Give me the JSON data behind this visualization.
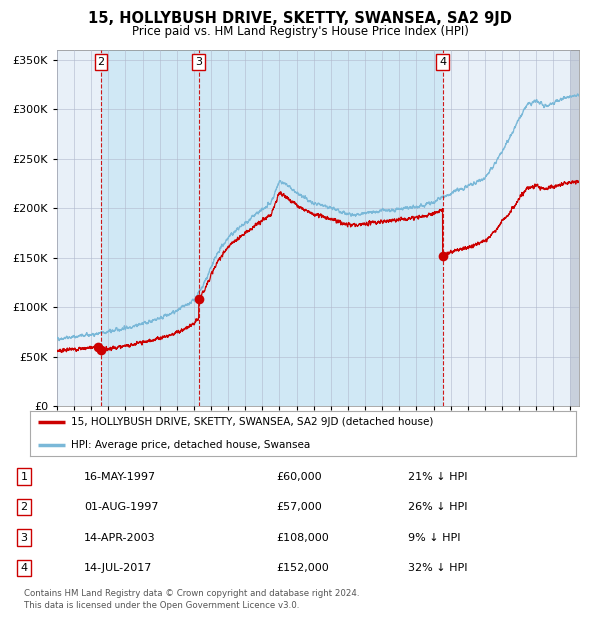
{
  "title": "15, HOLLYBUSH DRIVE, SKETTY, SWANSEA, SA2 9JD",
  "subtitle": "Price paid vs. HM Land Registry's House Price Index (HPI)",
  "legend_line1": "15, HOLLYBUSH DRIVE, SKETTY, SWANSEA, SA2 9JD (detached house)",
  "legend_line2": "HPI: Average price, detached house, Swansea",
  "footer1": "Contains HM Land Registry data © Crown copyright and database right 2024.",
  "footer2": "This data is licensed under the Open Government Licence v3.0.",
  "transactions": [
    {
      "label": "1",
      "date": "16-MAY-1997",
      "price": 60000,
      "pct": "21% ↓ HPI",
      "year": 1997.37
    },
    {
      "label": "2",
      "date": "01-AUG-1997",
      "price": 57000,
      "pct": "26% ↓ HPI",
      "year": 1997.58
    },
    {
      "label": "3",
      "date": "14-APR-2003",
      "price": 108000,
      "pct": "9% ↓ HPI",
      "year": 2003.28
    },
    {
      "label": "4",
      "date": "14-JUL-2017",
      "price": 152000,
      "pct": "32% ↓ HPI",
      "year": 2017.53
    }
  ],
  "hpi_color": "#7ab8d8",
  "price_color": "#cc0000",
  "dot_color": "#cc0000",
  "vline_color": "#cc0000",
  "shade_color": "#d0e8f5",
  "plot_bg": "#e8f0f8",
  "grid_color": "#b0b8cc",
  "hatch_color": "#c8d0dc",
  "ylim": [
    0,
    360000
  ],
  "xlim_start": 1995.0,
  "xlim_end": 2025.5,
  "hpi_anchors_x": [
    1995.0,
    1995.5,
    1996.0,
    1996.5,
    1997.0,
    1997.5,
    1998.0,
    1998.5,
    1999.0,
    1999.5,
    2000.0,
    2000.5,
    2001.0,
    2001.5,
    2002.0,
    2002.5,
    2003.0,
    2003.5,
    2004.0,
    2004.5,
    2005.0,
    2005.5,
    2006.0,
    2006.5,
    2007.0,
    2007.5,
    2008.0,
    2008.5,
    2009.0,
    2009.5,
    2010.0,
    2010.5,
    2011.0,
    2011.5,
    2012.0,
    2012.5,
    2013.0,
    2013.5,
    2014.0,
    2014.5,
    2015.0,
    2015.5,
    2016.0,
    2016.5,
    2017.0,
    2017.5,
    2018.0,
    2018.5,
    2019.0,
    2019.5,
    2020.0,
    2020.5,
    2021.0,
    2021.5,
    2022.0,
    2022.5,
    2023.0,
    2023.5,
    2024.0,
    2024.5,
    2025.0
  ],
  "hpi_anchors_y": [
    68000,
    69000,
    70000,
    71000,
    72000,
    73500,
    75000,
    77000,
    79000,
    81000,
    83000,
    86000,
    89000,
    92000,
    96000,
    101000,
    107000,
    120000,
    140000,
    158000,
    170000,
    178000,
    185000,
    192000,
    198000,
    205000,
    228000,
    222000,
    215000,
    210000,
    205000,
    203000,
    200000,
    197000,
    194000,
    193000,
    195000,
    196000,
    197000,
    198000,
    199000,
    200000,
    201000,
    203000,
    206000,
    210000,
    215000,
    219000,
    222000,
    226000,
    231000,
    242000,
    258000,
    272000,
    290000,
    305000,
    308000,
    303000,
    306000,
    310000,
    313000
  ],
  "table_rows": [
    [
      "1",
      "16-MAY-1997",
      "£60,000",
      "21% ↓ HPI"
    ],
    [
      "2",
      "01-AUG-1997",
      "£57,000",
      "26% ↓ HPI"
    ],
    [
      "3",
      "14-APR-2003",
      "£108,000",
      "9% ↓ HPI"
    ],
    [
      "4",
      "14-JUL-2017",
      "£152,000",
      "32% ↓ HPI"
    ]
  ]
}
